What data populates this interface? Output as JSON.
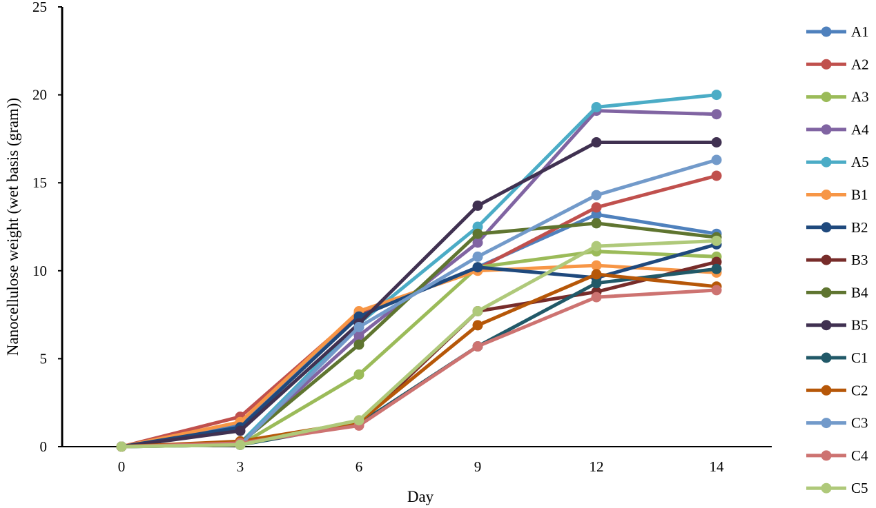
{
  "chart_data": {
    "type": "line",
    "title": "",
    "xlabel": "Day",
    "ylabel": "Nanocellulose weight (wet basis (gram))",
    "categories": [
      "0",
      "3",
      "6",
      "9",
      "12",
      "14"
    ],
    "ylim": [
      0,
      25
    ],
    "yticks": [
      "0",
      "5",
      "10",
      "15",
      "20",
      "25"
    ],
    "grid": false,
    "legend_position": "right",
    "series": [
      {
        "name": "A1",
        "color": "#4F81BD",
        "values": [
          0,
          1.2,
          7.5,
          10.2,
          13.2,
          12.1
        ]
      },
      {
        "name": "A2",
        "color": "#C0504D",
        "values": [
          0,
          1.7,
          7.6,
          10.1,
          13.6,
          15.4
        ]
      },
      {
        "name": "A3",
        "color": "#9BBB59",
        "values": [
          0,
          0.1,
          4.1,
          10.2,
          11.1,
          10.8
        ]
      },
      {
        "name": "A4",
        "color": "#8064A2",
        "values": [
          0,
          0.2,
          6.3,
          11.6,
          19.1,
          18.9
        ]
      },
      {
        "name": "A5",
        "color": "#4BACC6",
        "values": [
          0,
          0.2,
          7.0,
          12.5,
          19.3,
          20.0
        ]
      },
      {
        "name": "B1",
        "color": "#F79646",
        "values": [
          0,
          1.4,
          7.7,
          10.0,
          10.3,
          9.9
        ]
      },
      {
        "name": "B2",
        "color": "#1F497D",
        "values": [
          0,
          1.1,
          7.4,
          10.2,
          9.6,
          11.5
        ]
      },
      {
        "name": "B3",
        "color": "#772C2A",
        "values": [
          0,
          0.2,
          1.3,
          7.7,
          8.8,
          10.5
        ]
      },
      {
        "name": "B4",
        "color": "#5F7530",
        "values": [
          0,
          0.2,
          5.8,
          12.1,
          12.7,
          11.9
        ]
      },
      {
        "name": "B5",
        "color": "#403151",
        "values": [
          0,
          0.9,
          7.0,
          13.7,
          17.3,
          17.3
        ]
      },
      {
        "name": "C1",
        "color": "#215968",
        "values": [
          0,
          0.1,
          1.3,
          5.7,
          9.3,
          10.1
        ]
      },
      {
        "name": "C2",
        "color": "#B65708",
        "values": [
          0,
          0.3,
          1.4,
          6.9,
          9.8,
          9.1
        ]
      },
      {
        "name": "C3",
        "color": "#729ACA",
        "values": [
          0,
          0.1,
          6.8,
          10.8,
          14.3,
          16.3
        ]
      },
      {
        "name": "C4",
        "color": "#CD7371",
        "values": [
          0,
          0.2,
          1.2,
          5.7,
          8.5,
          8.9
        ]
      },
      {
        "name": "C5",
        "color": "#AFC97A",
        "values": [
          0,
          0.1,
          1.5,
          7.7,
          11.4,
          11.7
        ]
      }
    ]
  }
}
